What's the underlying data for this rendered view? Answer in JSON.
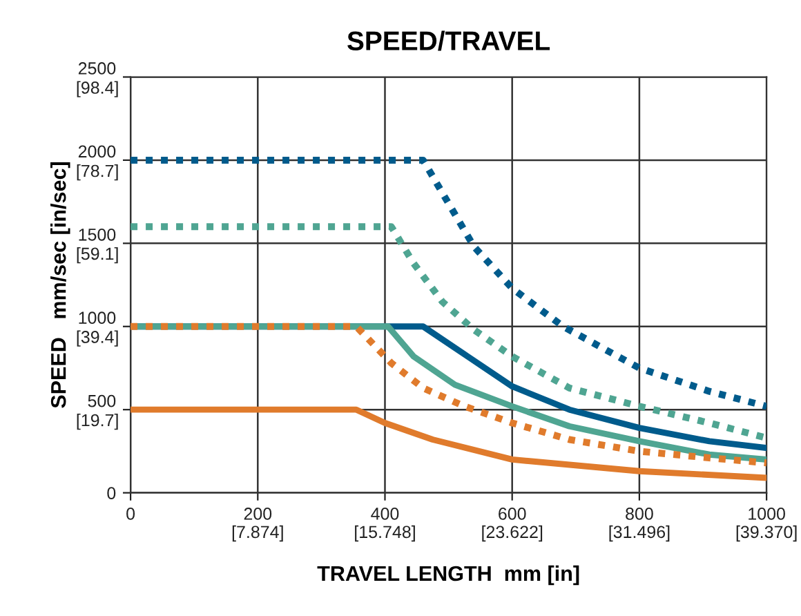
{
  "chart_data": {
    "type": "line",
    "title": "SPEED/TRAVEL",
    "xlabel": "TRAVEL LENGTH  mm [in]",
    "ylabel": "SPEED   mm/sec [in/sec]",
    "xlim": [
      0,
      1000
    ],
    "ylim": [
      0,
      2500
    ],
    "xticks": [
      0,
      200,
      400,
      600,
      800,
      1000
    ],
    "yticks": [
      0,
      500,
      1000,
      1500,
      2000,
      2500
    ],
    "x2lim": [
      0,
      39.37
    ],
    "x2ticks": [
      {
        "value": 7.874,
        "label": "[7.874]"
      },
      {
        "value": 15.748,
        "label": "[15.748]"
      },
      {
        "value": 23.622,
        "label": "[23.622]"
      },
      {
        "value": 31.496,
        "label": "[31.496]"
      },
      {
        "value": 39.37,
        "label": "[39.370]"
      }
    ],
    "y2lim": [
      0,
      98.4
    ],
    "y2ticks": [
      {
        "value": 19.7,
        "label": "[19.7]"
      },
      {
        "value": 39.4,
        "label": "[39.4]"
      },
      {
        "value": 59.1,
        "label": "[59.1]"
      },
      {
        "value": 78.7,
        "label": "[78.7]"
      },
      {
        "value": 98.4,
        "label": "[98.4]"
      }
    ],
    "grid": true,
    "marker": "none",
    "series": [
      {
        "color": "#005b8c",
        "line_style": "dotted",
        "x": [
          0,
          460,
          540,
          600,
          680,
          800,
          910,
          1000
        ],
        "values": [
          2000,
          2000,
          1480,
          1230,
          1000,
          750,
          610,
          520
        ]
      },
      {
        "color": "#4fa592",
        "line_style": "dotted",
        "x": [
          0,
          410,
          445,
          490,
          540,
          600,
          690,
          800,
          910,
          1000
        ],
        "values": [
          1600,
          1600,
          1380,
          1150,
          980,
          820,
          630,
          520,
          420,
          330
        ]
      },
      {
        "color": "#005b8c",
        "line_style": "solid",
        "x": [
          0,
          460,
          530,
          600,
          690,
          800,
          910,
          1000
        ],
        "values": [
          1000,
          1000,
          820,
          640,
          500,
          390,
          310,
          270
        ]
      },
      {
        "color": "#4fa592",
        "line_style": "solid",
        "x": [
          0,
          405,
          445,
          510,
          600,
          690,
          800,
          910,
          1000
        ],
        "values": [
          1000,
          1000,
          820,
          650,
          520,
          400,
          310,
          230,
          200
        ]
      },
      {
        "color": "#e07b2c",
        "line_style": "dotted",
        "x": [
          0,
          355,
          410,
          460,
          525,
          600,
          690,
          800,
          910,
          1000
        ],
        "values": [
          1000,
          1000,
          780,
          630,
          520,
          420,
          320,
          250,
          210,
          180
        ]
      },
      {
        "color": "#e07b2c",
        "line_style": "solid",
        "x": [
          0,
          355,
          400,
          475,
          600,
          800,
          1000
        ],
        "values": [
          500,
          500,
          420,
          320,
          200,
          130,
          90
        ]
      }
    ]
  }
}
